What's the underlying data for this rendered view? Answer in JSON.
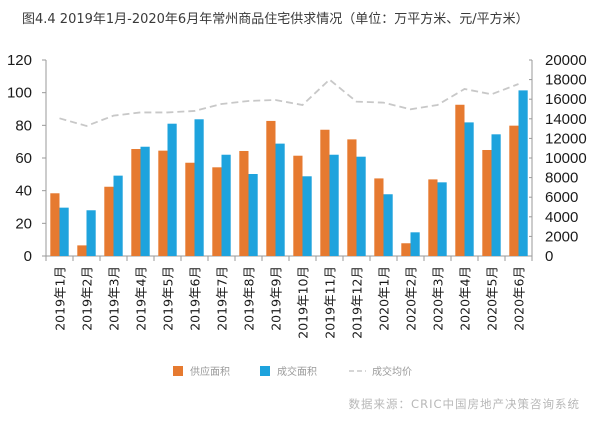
{
  "title": "图4.4 2019年1月-2020年6月年常州商品住宅供求情况（单位：万平方米、元/平方米）",
  "source": "数据来源：CRIC中国房地产决策咨询系统",
  "chart_data": {
    "type": "bar",
    "title": "图4.4 2019年1月-2020年6月年常州商品住宅供求情况（单位：万平方米、元/平方米）",
    "categories": [
      "2019年1月",
      "2019年2月",
      "2019年3月",
      "2019年4月",
      "2019年5月",
      "2019年6月",
      "2019年7月",
      "2019年8月",
      "2019年9月",
      "2019年10月",
      "2019年11月",
      "2019年12月",
      "2020年1月",
      "2020年2月",
      "2020年3月",
      "2020年4月",
      "2020年5月",
      "2020年6月"
    ],
    "series": [
      {
        "name": "供应面积",
        "type": "bar",
        "axis": "left",
        "color": "#E67A30",
        "values": [
          38.4,
          6.5,
          42.4,
          65.5,
          64.5,
          57.1,
          54.3,
          64.3,
          82.7,
          61.4,
          77.3,
          71.4,
          47.5,
          7.8,
          46.9,
          92.6,
          64.9,
          79.8
        ]
      },
      {
        "name": "成交面积",
        "type": "bar",
        "axis": "left",
        "color": "#1EA3DD",
        "values": [
          29.6,
          28.0,
          49.2,
          66.9,
          81.0,
          83.7,
          62.0,
          50.2,
          68.8,
          48.8,
          62.0,
          60.8,
          37.8,
          14.5,
          45.1,
          81.8,
          74.5,
          101.4
        ]
      },
      {
        "name": "成交均价",
        "type": "line",
        "style": "dashed",
        "axis": "right",
        "color": "#C8C8C8",
        "values": [
          14050,
          13270,
          14320,
          14650,
          14650,
          14800,
          15510,
          15820,
          15920,
          15410,
          18000,
          15750,
          15650,
          14970,
          15410,
          17040,
          16500,
          17550
        ]
      }
    ],
    "y_left": {
      "ylim": [
        0,
        120
      ],
      "ticks": [
        "0",
        "20",
        "40",
        "60",
        "80",
        "100",
        "120"
      ]
    },
    "y_right": {
      "ylim": [
        0,
        20000
      ],
      "ticks": [
        "0",
        "2000",
        "4000",
        "6000",
        "8000",
        "10000",
        "12000",
        "14000",
        "16000",
        "18000",
        "20000"
      ]
    },
    "xlabel": "",
    "ylabel": "",
    "grid": false,
    "legend_position": "bottom"
  }
}
